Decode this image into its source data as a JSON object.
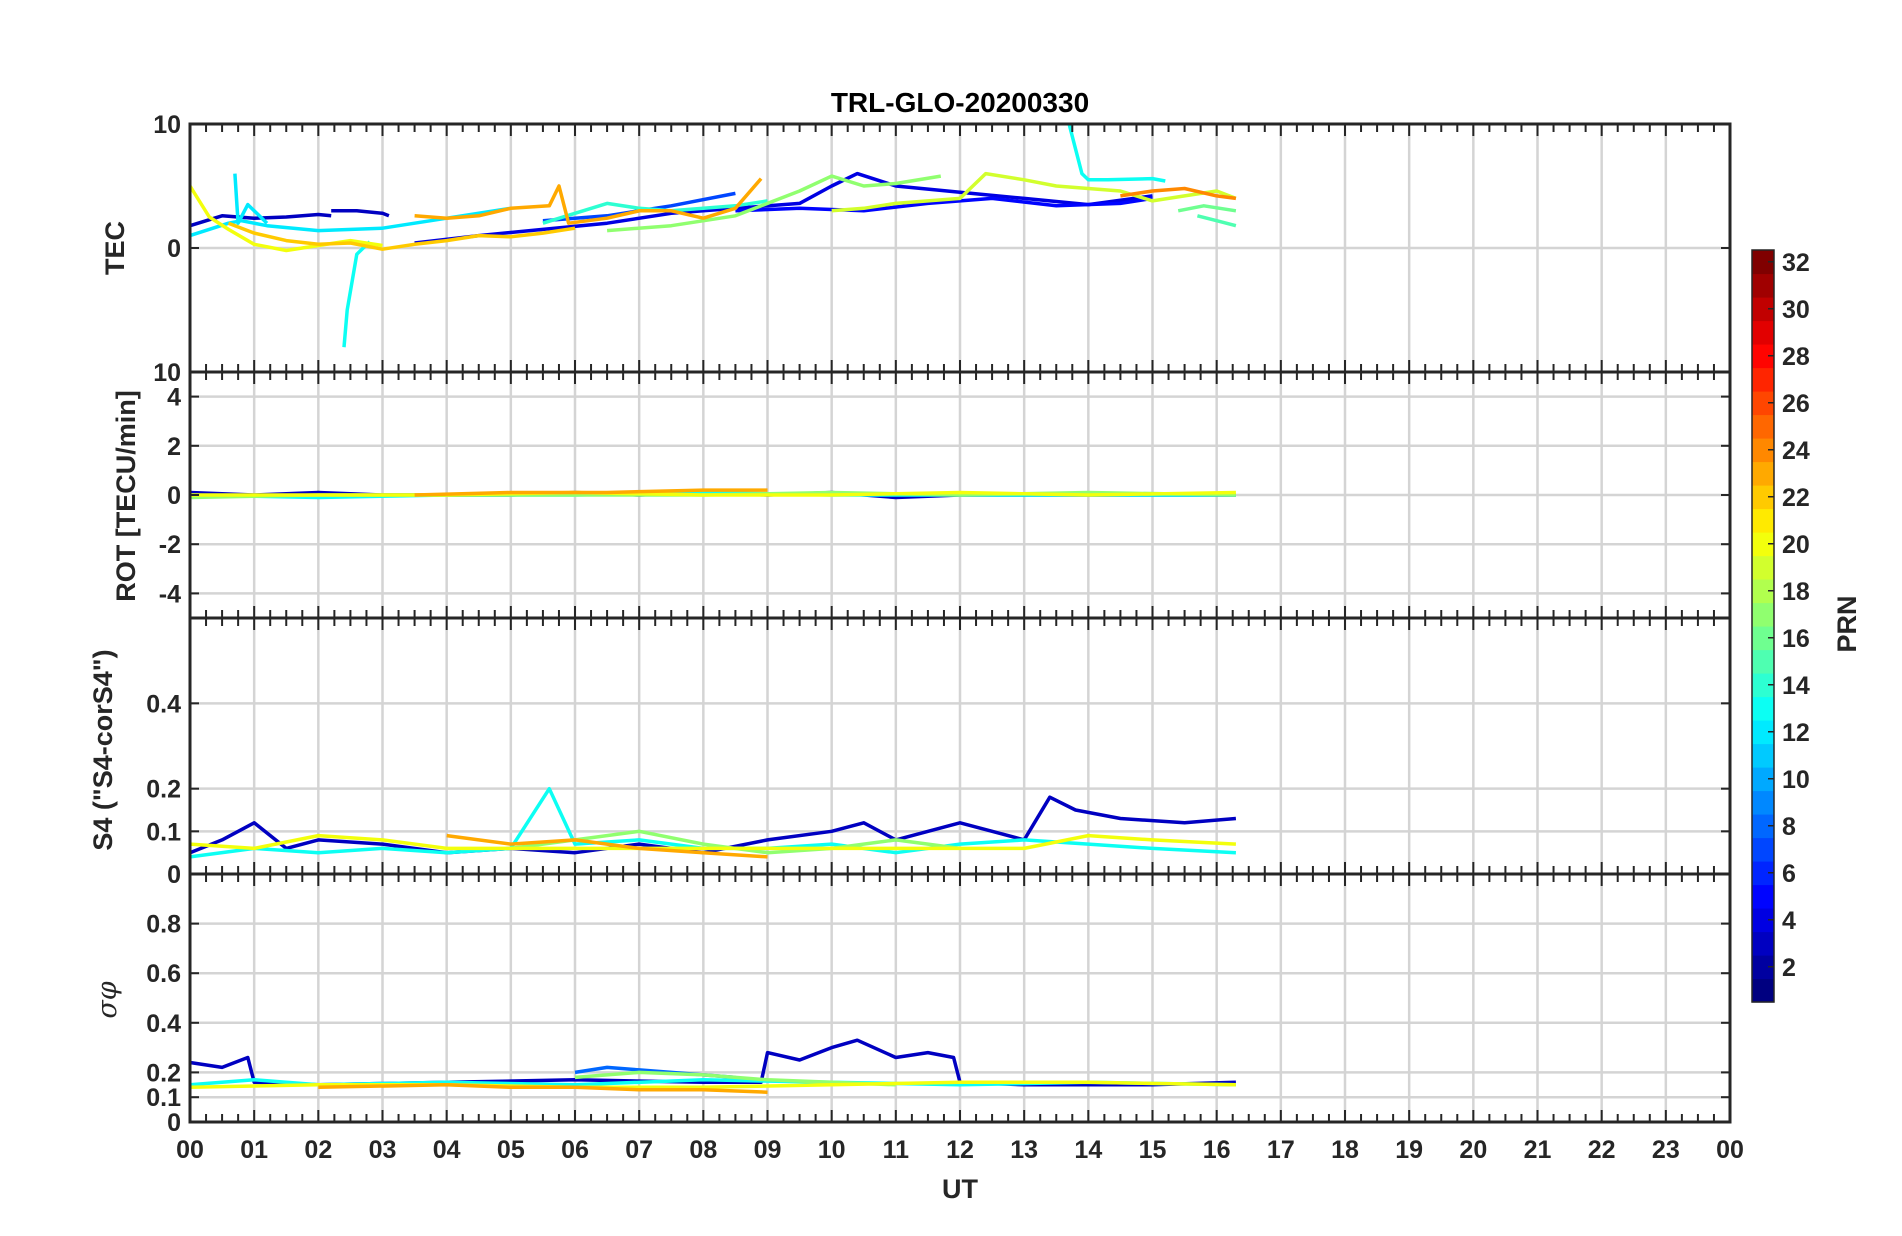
{
  "chart_data": {
    "type": "line",
    "title": "TRL-GLO-20200330",
    "xlabel": "UT",
    "x_ticks": [
      "00",
      "01",
      "02",
      "03",
      "04",
      "05",
      "06",
      "07",
      "08",
      "09",
      "10",
      "11",
      "12",
      "13",
      "14",
      "15",
      "16",
      "17",
      "18",
      "19",
      "20",
      "21",
      "22",
      "23",
      "00"
    ],
    "xlim": [
      0,
      24
    ],
    "grid": true,
    "colorbar": {
      "label": "PRN",
      "range": [
        1,
        32
      ],
      "ticks": [
        "2",
        "4",
        "6",
        "8",
        "10",
        "12",
        "14",
        "16",
        "18",
        "20",
        "22",
        "24",
        "26",
        "28",
        "30",
        "32"
      ],
      "colormap": "jet"
    },
    "panels": [
      {
        "id": "tec",
        "ylabel": "TEC",
        "ylim": [
          -10,
          10
        ],
        "y_ticks": [
          "10",
          "0",
          "10"
        ],
        "y_tick_values": [
          10,
          0,
          -10
        ],
        "series": [
          {
            "name": "PRN 3",
            "prn": 3,
            "x": [
              0.0,
              0.5,
              1.0,
              1.5,
              2.0,
              2.2
            ],
            "y": [
              1.8,
              2.6,
              2.4,
              2.5,
              2.7,
              2.6
            ]
          },
          {
            "name": "PRN 3b",
            "prn": 3,
            "x": [
              2.2,
              2.6,
              3.0,
              3.1
            ],
            "y": [
              3.0,
              3.0,
              2.8,
              2.6
            ]
          },
          {
            "name": "PRN 4",
            "prn": 4,
            "x": [
              3.5,
              4.5,
              5.5,
              6.5,
              7.5,
              8.5,
              9.5,
              10.0,
              10.4,
              11.0,
              12.0,
              13.0,
              14.0,
              15.0
            ],
            "y": [
              0.4,
              1.0,
              1.5,
              2.0,
              2.8,
              3.2,
              3.6,
              5.0,
              6.0,
              5.0,
              4.5,
              4.0,
              3.5,
              4.2
            ]
          },
          {
            "name": "PRN 5",
            "prn": 5,
            "x": [
              8.5,
              9.5,
              10.5,
              11.5,
              12.5,
              13.5,
              14.5,
              15.0
            ],
            "y": [
              3.0,
              3.2,
              3.0,
              3.6,
              4.0,
              3.4,
              3.6,
              4.0
            ]
          },
          {
            "name": "PRN 7",
            "prn": 7,
            "x": [
              5.5,
              6.5,
              7.5,
              8.5
            ],
            "y": [
              2.2,
              2.6,
              3.4,
              4.4
            ]
          },
          {
            "name": "PRN 12",
            "prn": 12,
            "x": [
              0.0,
              0.6,
              0.8,
              1.2,
              2.0,
              3.0,
              4.0,
              5.0
            ],
            "y": [
              1.0,
              2.0,
              2.2,
              1.8,
              1.4,
              1.6,
              2.4,
              3.2
            ]
          },
          {
            "name": "PRN 12b",
            "prn": 12,
            "x": [
              0.7,
              0.75,
              0.9,
              1.2
            ],
            "y": [
              6.0,
              2.0,
              3.5,
              2.0
            ]
          },
          {
            "name": "PRN 13",
            "prn": 13,
            "x": [
              2.4,
              2.45,
              2.6,
              2.8
            ],
            "y": [
              -8.0,
              -5.0,
              -0.5,
              0.5
            ]
          },
          {
            "name": "PRN 13b",
            "prn": 13,
            "x": [
              13.7,
              13.8,
              13.9,
              14.0,
              14.3,
              15.0,
              15.2
            ],
            "y": [
              10.5,
              8.0,
              6.0,
              5.5,
              5.5,
              5.6,
              5.4
            ]
          },
          {
            "name": "PRN 14",
            "prn": 14,
            "x": [
              5.5,
              6.0,
              6.5,
              7.0,
              7.5,
              8.5,
              9.0
            ],
            "y": [
              2.0,
              2.8,
              3.6,
              3.2,
              3.0,
              3.4,
              3.8
            ]
          },
          {
            "name": "PRN 15",
            "prn": 15,
            "x": [
              15.7,
              16.0,
              16.3
            ],
            "y": [
              2.6,
              2.2,
              1.8
            ]
          },
          {
            "name": "PRN 16",
            "prn": 16,
            "x": [
              15.4,
              15.8,
              16.3
            ],
            "y": [
              3.0,
              3.4,
              3.0
            ]
          },
          {
            "name": "PRN 17",
            "prn": 17,
            "x": [
              6.5,
              7.5,
              8.5,
              9.5,
              10.0,
              10.5,
              11.0,
              11.7
            ],
            "y": [
              1.4,
              1.8,
              2.6,
              4.6,
              5.8,
              5.0,
              5.2,
              5.8
            ]
          },
          {
            "name": "PRN 19",
            "prn": 19,
            "x": [
              10.0,
              10.5,
              11.0,
              12.0,
              12.4,
              13.0,
              13.5,
              14.0,
              14.5,
              15.0,
              15.5,
              16.0,
              16.3
            ],
            "y": [
              3.0,
              3.2,
              3.6,
              4.0,
              6.0,
              5.5,
              5.0,
              4.8,
              4.6,
              3.8,
              4.2,
              4.6,
              4.0
            ]
          },
          {
            "name": "PRN 20",
            "prn": 20,
            "x": [
              0.0,
              0.3,
              0.6,
              1.0,
              1.5,
              2.0,
              2.5,
              3.0
            ],
            "y": [
              5.0,
              2.5,
              1.5,
              0.3,
              -0.2,
              0.2,
              0.6,
              0.2
            ]
          },
          {
            "name": "PRN 22",
            "prn": 22,
            "x": [
              0.6,
              1.0,
              1.5,
              2.0,
              2.5,
              3.0,
              3.5,
              4.0,
              4.5,
              5.0,
              5.5,
              6.0
            ],
            "y": [
              2.0,
              1.2,
              0.6,
              0.3,
              0.4,
              -0.1,
              0.3,
              0.6,
              1.0,
              0.9,
              1.2,
              1.6
            ]
          },
          {
            "name": "PRN 23",
            "prn": 23,
            "x": [
              3.5,
              4.0,
              4.5,
              5.0,
              5.6,
              5.75,
              5.9,
              6.5,
              7.0,
              7.5,
              8.0,
              8.5,
              8.9
            ],
            "y": [
              2.6,
              2.4,
              2.6,
              3.2,
              3.4,
              5.0,
              2.0,
              2.4,
              3.0,
              3.0,
              2.4,
              3.2,
              5.6
            ]
          },
          {
            "name": "PRN 24",
            "prn": 24,
            "x": [
              14.5,
              15.0,
              15.5,
              16.0,
              16.3
            ],
            "y": [
              4.2,
              4.6,
              4.8,
              4.2,
              4.0
            ]
          }
        ]
      },
      {
        "id": "rot",
        "ylabel": "ROT [TECU/min]",
        "ylim": [
          -5,
          5
        ],
        "y_ticks": [
          "-4",
          "-2",
          "0",
          "2",
          "4"
        ],
        "y_tick_values": [
          -4,
          -2,
          0,
          2,
          4
        ],
        "series": [
          {
            "name": "PRN 3",
            "prn": 3,
            "x": [
              0.0,
              1.0,
              2.0,
              3.0,
              4.0,
              5.0,
              6.0,
              7.0,
              8.0,
              9.0,
              10.0,
              11.0,
              12.0,
              13.0,
              14.0,
              15.0,
              16.3
            ],
            "y": [
              0.1,
              0.0,
              0.1,
              0.0,
              0.0,
              0.0,
              0.1,
              0.0,
              0.1,
              0.0,
              0.1,
              -0.1,
              0.0,
              0.0,
              0.0,
              0.0,
              0.0
            ]
          },
          {
            "name": "PRN 13",
            "prn": 13,
            "x": [
              0.0,
              2.0,
              4.0,
              6.0,
              8.0,
              10.0,
              12.0,
              14.0,
              16.3
            ],
            "y": [
              0.0,
              -0.1,
              0.0,
              0.0,
              0.1,
              0.0,
              0.0,
              0.0,
              0.0
            ]
          },
          {
            "name": "PRN 17",
            "prn": 17,
            "x": [
              0.0,
              2.0,
              4.0,
              6.0,
              8.0,
              10.0,
              12.0,
              14.0,
              16.3
            ],
            "y": [
              -0.1,
              0.0,
              0.0,
              0.0,
              0.0,
              0.1,
              0.0,
              0.1,
              0.0
            ]
          },
          {
            "name": "PRN 20",
            "prn": 20,
            "x": [
              0.0,
              2.0,
              4.0,
              6.0,
              8.0,
              10.0,
              12.0,
              14.0,
              16.3
            ],
            "y": [
              0.0,
              0.0,
              0.0,
              0.1,
              0.0,
              0.0,
              0.1,
              0.0,
              0.1
            ]
          },
          {
            "name": "PRN 23",
            "prn": 23,
            "x": [
              3.5,
              5.0,
              6.5,
              8.0,
              9.0
            ],
            "y": [
              0.0,
              0.1,
              0.1,
              0.2,
              0.2
            ]
          }
        ]
      },
      {
        "id": "s4",
        "ylabel": "S4 (\"S4-corS4\")",
        "ylim": [
          0,
          0.6
        ],
        "y_ticks": [
          "0",
          "0.1",
          "0.2",
          "0.4"
        ],
        "y_tick_values": [
          0,
          0.1,
          0.2,
          0.4
        ],
        "series": [
          {
            "name": "PRN 3",
            "prn": 3,
            "x": [
              0.0,
              0.5,
              1.0,
              1.5,
              2.0,
              3.0,
              4.0,
              5.0,
              6.0,
              7.0,
              8.0,
              9.0,
              10.0,
              10.5,
              11.0,
              12.0,
              12.5,
              13.0,
              13.4,
              13.8,
              14.5,
              15.5,
              16.3
            ],
            "y": [
              0.05,
              0.08,
              0.12,
              0.06,
              0.08,
              0.07,
              0.05,
              0.06,
              0.05,
              0.07,
              0.05,
              0.08,
              0.1,
              0.12,
              0.08,
              0.12,
              0.1,
              0.08,
              0.18,
              0.15,
              0.13,
              0.12,
              0.13
            ]
          },
          {
            "name": "PRN 13",
            "prn": 13,
            "x": [
              0.0,
              1.0,
              2.0,
              3.0,
              4.0,
              5.0,
              5.6,
              6.0,
              7.0,
              8.0,
              9.0,
              10.0,
              11.0,
              12.0,
              13.0,
              14.0,
              15.0,
              16.3
            ],
            "y": [
              0.04,
              0.06,
              0.05,
              0.06,
              0.05,
              0.06,
              0.2,
              0.07,
              0.08,
              0.06,
              0.06,
              0.07,
              0.05,
              0.07,
              0.08,
              0.07,
              0.06,
              0.05
            ]
          },
          {
            "name": "PRN 17",
            "prn": 17,
            "x": [
              5.0,
              6.0,
              7.0,
              8.0,
              9.0,
              10.0,
              11.0,
              12.0
            ],
            "y": [
              0.06,
              0.08,
              0.1,
              0.07,
              0.05,
              0.06,
              0.08,
              0.06
            ]
          },
          {
            "name": "PRN 20",
            "prn": 20,
            "x": [
              0.0,
              1.0,
              2.0,
              3.0,
              4.0,
              13.0,
              14.0,
              15.0,
              16.3
            ],
            "y": [
              0.07,
              0.06,
              0.09,
              0.08,
              0.06,
              0.06,
              0.09,
              0.08,
              0.07
            ]
          },
          {
            "name": "PRN 23",
            "prn": 23,
            "x": [
              4.0,
              5.0,
              6.0,
              7.0,
              8.0,
              9.0
            ],
            "y": [
              0.09,
              0.07,
              0.08,
              0.06,
              0.05,
              0.04
            ]
          }
        ]
      },
      {
        "id": "sigma_phi",
        "ylabel": "σφ",
        "ylim": [
          0,
          1
        ],
        "y_ticks": [
          "0",
          "0.1",
          "0.2",
          "0.4",
          "0.6",
          "0.8"
        ],
        "y_tick_values": [
          0,
          0.1,
          0.2,
          0.4,
          0.6,
          0.8
        ],
        "series": [
          {
            "name": "PRN 3",
            "prn": 3,
            "x": [
              0.0,
              0.5,
              0.9,
              1.0,
              2.0,
              4.0,
              6.0,
              8.0,
              8.9,
              9.0,
              9.5,
              10.0,
              10.4,
              11.0,
              11.5,
              11.9,
              12.0,
              13.0,
              14.0,
              15.0,
              16.3
            ],
            "y": [
              0.24,
              0.22,
              0.26,
              0.16,
              0.15,
              0.16,
              0.17,
              0.16,
              0.16,
              0.28,
              0.25,
              0.3,
              0.33,
              0.26,
              0.28,
              0.26,
              0.16,
              0.15,
              0.15,
              0.15,
              0.16
            ]
          },
          {
            "name": "PRN 8",
            "prn": 8,
            "x": [
              6.0,
              6.5,
              7.0,
              7.5,
              8.0,
              8.5
            ],
            "y": [
              0.2,
              0.22,
              0.21,
              0.2,
              0.19,
              0.18
            ]
          },
          {
            "name": "PRN 13",
            "prn": 13,
            "x": [
              0.0,
              1.0,
              2.0,
              4.0,
              6.0,
              8.0,
              10.0,
              12.0,
              14.0,
              16.3
            ],
            "y": [
              0.15,
              0.17,
              0.15,
              0.16,
              0.15,
              0.17,
              0.16,
              0.15,
              0.16,
              0.15
            ]
          },
          {
            "name": "PRN 17",
            "prn": 17,
            "x": [
              6.0,
              7.0,
              8.0,
              9.0,
              10.0,
              11.0
            ],
            "y": [
              0.18,
              0.2,
              0.19,
              0.17,
              0.16,
              0.15
            ]
          },
          {
            "name": "PRN 20",
            "prn": 20,
            "x": [
              0.0,
              2.0,
              4.0,
              6.0,
              8.0,
              10.0,
              12.0,
              14.0,
              16.3
            ],
            "y": [
              0.14,
              0.15,
              0.15,
              0.14,
              0.14,
              0.15,
              0.16,
              0.16,
              0.15
            ]
          },
          {
            "name": "PRN 23",
            "prn": 23,
            "x": [
              2.0,
              4.0,
              5.0,
              6.0,
              7.0,
              8.0,
              9.0
            ],
            "y": [
              0.14,
              0.15,
              0.14,
              0.14,
              0.13,
              0.13,
              0.12
            ]
          }
        ]
      }
    ]
  }
}
